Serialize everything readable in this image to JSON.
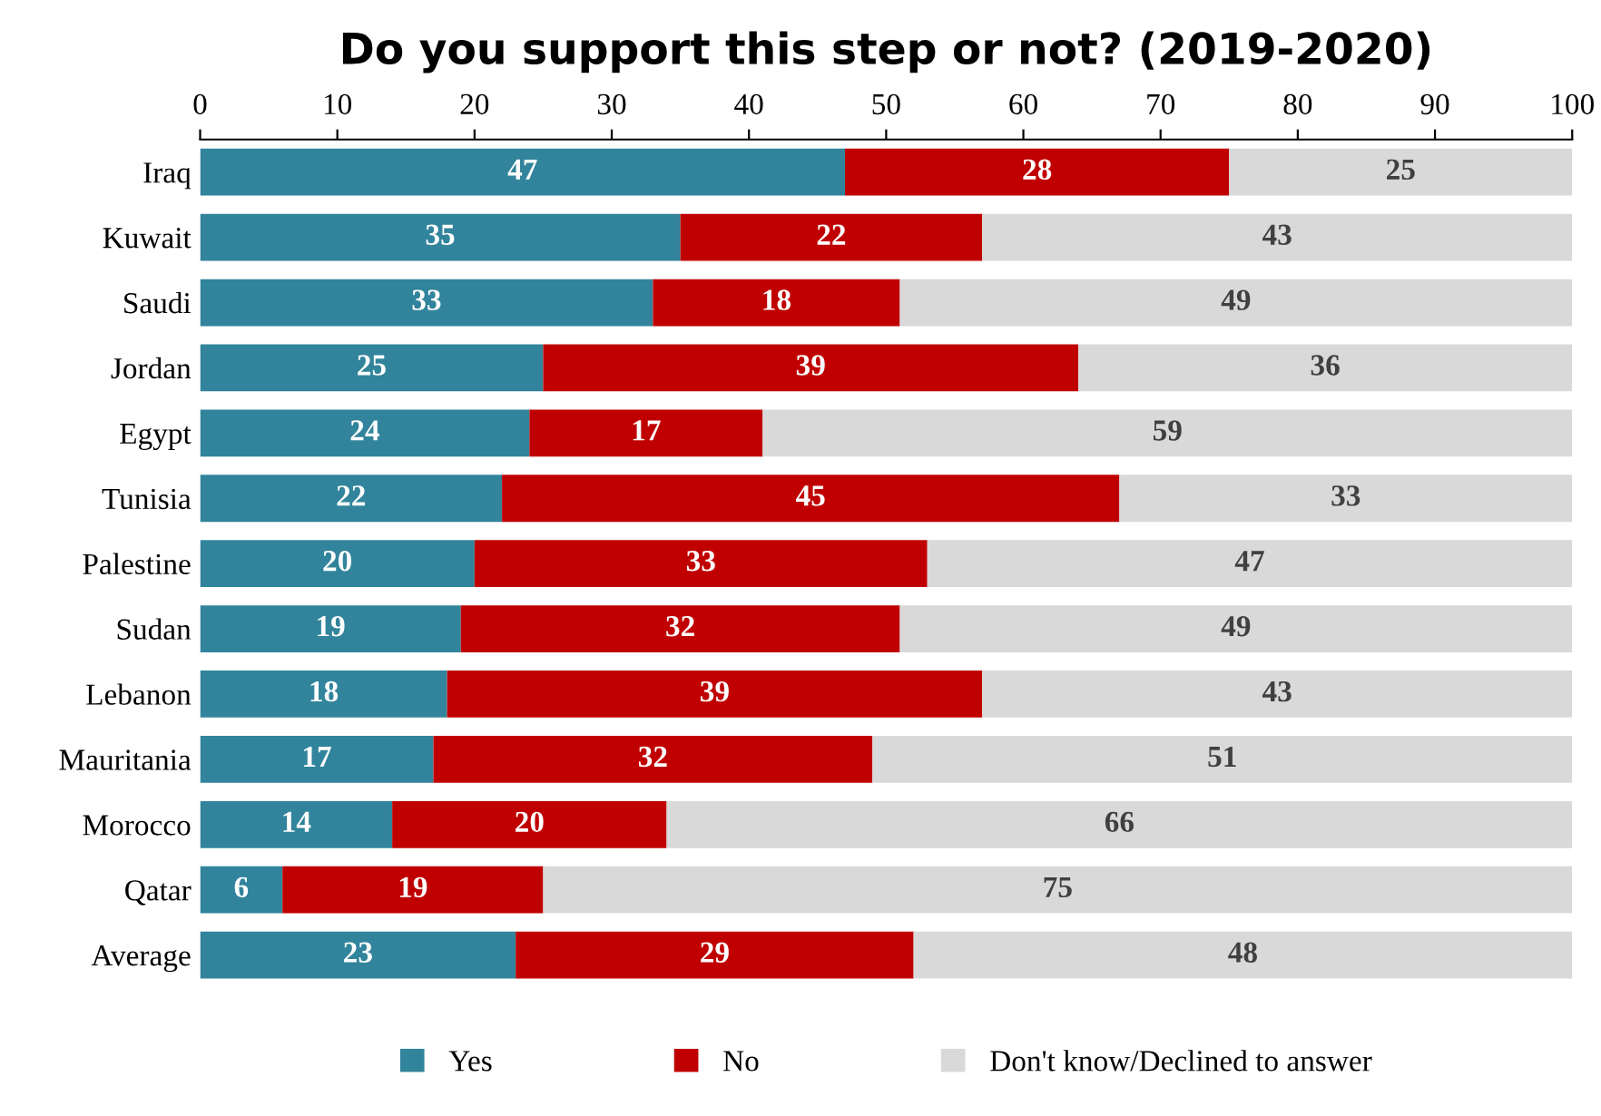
{
  "chart_data": {
    "type": "bar",
    "orientation": "horizontal",
    "stacked": true,
    "title": "Do you support this step or not? (2019-2020)",
    "categories": [
      "Iraq",
      "Kuwait",
      "Saudi",
      "Jordan",
      "Egypt",
      "Tunisia",
      "Palestine",
      "Sudan",
      "Lebanon",
      "Mauritania",
      "Morocco",
      "Qatar",
      "Average"
    ],
    "series": [
      {
        "name": "Yes",
        "color": "#31849b",
        "values": [
          47,
          35,
          33,
          25,
          24,
          22,
          20,
          19,
          18,
          17,
          14,
          6,
          23
        ]
      },
      {
        "name": "No",
        "color": "#c00000",
        "values": [
          28,
          22,
          18,
          39,
          17,
          45,
          33,
          32,
          39,
          32,
          20,
          19,
          29
        ]
      },
      {
        "name": "Don't know/Declined to answer",
        "color": "#d9d9d9",
        "values": [
          25,
          43,
          49,
          36,
          59,
          33,
          47,
          49,
          43,
          51,
          66,
          75,
          48
        ]
      }
    ],
    "xlim": [
      0,
      100
    ],
    "xticks": [
      0,
      10,
      20,
      30,
      40,
      50,
      60,
      70,
      80,
      90,
      100
    ],
    "data_labels": true,
    "legend": "bottom",
    "grid": false
  }
}
